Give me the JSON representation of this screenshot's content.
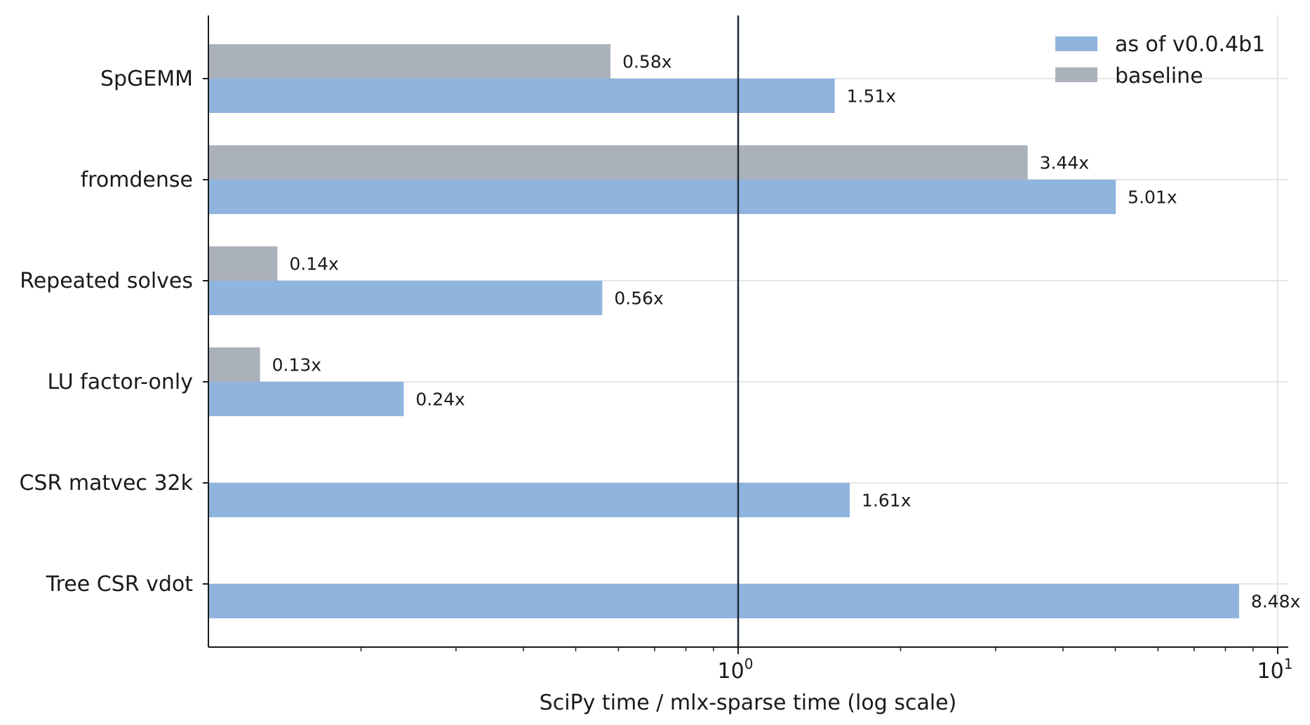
{
  "chart_data": {
    "type": "bar",
    "orientation": "horizontal",
    "scale": "log",
    "categories": [
      "SpGEMM",
      "fromdense",
      "Repeated solves",
      "LU factor-only",
      "CSR matvec 32k",
      "Tree CSR vdot"
    ],
    "series": [
      {
        "name": "as of v0.0.4b1",
        "color": "#8fb4de",
        "values": [
          1.51,
          5.01,
          0.56,
          0.24,
          1.61,
          8.48
        ],
        "labels": [
          "1.51x",
          "5.01x",
          "0.56x",
          "0.24x",
          "1.61x",
          "8.48x"
        ]
      },
      {
        "name": "baseline",
        "color": "#abb1bb",
        "values": [
          0.58,
          3.44,
          0.14,
          0.13,
          null,
          null
        ],
        "labels": [
          "0.58x",
          "3.44x",
          "0.14x",
          "0.13x",
          null,
          null
        ]
      }
    ],
    "xlabel": "SciPy time / mlx-sparse time (log scale)",
    "xlim": [
      0.1,
      10.2
    ],
    "xticks": [
      {
        "base": "10",
        "exp": "0",
        "value": 1
      },
      {
        "base": "10",
        "exp": "1",
        "value": 10
      }
    ],
    "reference_line": 1,
    "grid": "horizontal",
    "legend": "top-right"
  }
}
